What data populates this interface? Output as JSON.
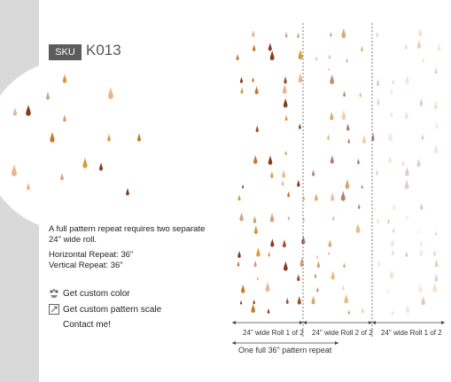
{
  "product": {
    "sku_label": "SKU",
    "sku_code": "K013"
  },
  "info": {
    "repeat_note_line1": "A full pattern repeat requires two separate",
    "repeat_note_line2": "24\" wide roll.",
    "horizontal_repeat": "Horizontal Repeat: 36\"",
    "vertical_repeat": "Vertical Repeat: 36\""
  },
  "actions": {
    "custom_color": "Get custom color",
    "custom_scale": "Get custom pattern scale",
    "contact": "Contact me!"
  },
  "diagram": {
    "roll1_label": "24\" wide Roll 1 of 2",
    "roll2_label": "24\" wide Roll 2 of 2",
    "roll3_label": "24\" wide Roll 1 of 2",
    "repeat_label": "One full 36\" pattern repeat"
  },
  "colors": {
    "left_band": "#d9d9d9",
    "sku_tag": "#5c5c5c",
    "drop_palette": [
      "#8b3a1e",
      "#c8792a",
      "#d99a3a",
      "#e8b48f",
      "#d2a287",
      "#a0522d"
    ]
  }
}
